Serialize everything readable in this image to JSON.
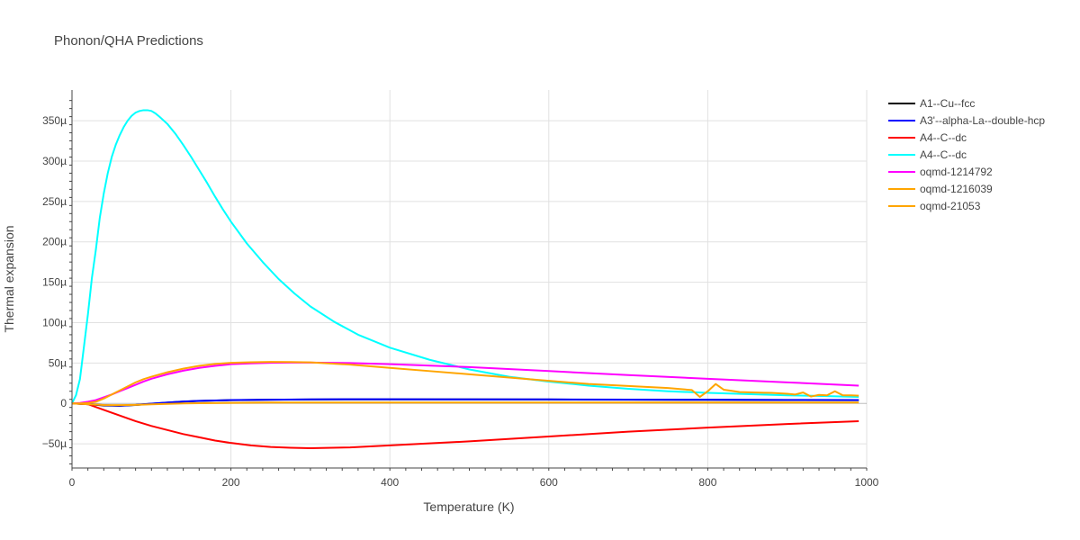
{
  "chart_data": {
    "type": "line",
    "title": "Phonon/QHA Predictions",
    "xlabel": "Temperature (K)",
    "ylabel": "Thermal expansion",
    "xlim": [
      0,
      1000
    ],
    "ylim": [
      -8e-05,
      0.000388
    ],
    "xticks": [
      0,
      200,
      400,
      600,
      800,
      1000
    ],
    "xtick_labels": [
      "0",
      "200",
      "400",
      "600",
      "800",
      "1000"
    ],
    "yticks": [
      -5e-05,
      0,
      5e-05,
      0.0001,
      0.00015,
      0.0002,
      0.00025,
      0.0003,
      0.00035
    ],
    "ytick_labels": [
      "−50µ",
      "0",
      "50µ",
      "100µ",
      "150µ",
      "200µ",
      "250µ",
      "300µ",
      "350µ"
    ],
    "grid": true,
    "legend_position": "right",
    "series": [
      {
        "name": "A1--Cu--fcc",
        "color": "#000000",
        "x": [
          0,
          20,
          40,
          60,
          80,
          100,
          120,
          140,
          160,
          200,
          250,
          300,
          350,
          400,
          500,
          600,
          700,
          800,
          900,
          990
        ],
        "y": [
          0,
          -1e-06,
          -2.5e-06,
          -3e-06,
          -2e-06,
          -5e-07,
          1e-06,
          2.2e-06,
          3e-06,
          4e-06,
          4.5e-06,
          4.8e-06,
          5e-06,
          5e-06,
          5e-06,
          4.8e-06,
          4.6e-06,
          4.4e-06,
          4.2e-06,
          4e-06
        ]
      },
      {
        "name": "A3'--alpha-La--double-hcp",
        "color": "#0000ff",
        "x": [
          0,
          20,
          40,
          60,
          80,
          100,
          120,
          140,
          160,
          200,
          250,
          300,
          350,
          400,
          500,
          600,
          700,
          800,
          900,
          990
        ],
        "y": [
          0,
          -8e-07,
          -2.2e-06,
          -2.8e-06,
          -1.8e-06,
          -3e-07,
          1.1e-06,
          2.3e-06,
          3.1e-06,
          4.1e-06,
          4.6e-06,
          4.9e-06,
          5.1e-06,
          5.1e-06,
          5e-06,
          4.9e-06,
          4.7e-06,
          4.5e-06,
          4.3e-06,
          4.1e-06
        ]
      },
      {
        "name": "A4--C--dc",
        "color": "#ff0000",
        "x": [
          0,
          20,
          40,
          60,
          80,
          100,
          120,
          140,
          160,
          180,
          200,
          225,
          250,
          275,
          300,
          350,
          400,
          500,
          600,
          700,
          800,
          900,
          990
        ],
        "y": [
          0,
          -1e-06,
          -8e-06,
          -1.5e-05,
          -2.2e-05,
          -2.8e-05,
          -3.3e-05,
          -3.8e-05,
          -4.2e-05,
          -4.6e-05,
          -4.9e-05,
          -5.2e-05,
          -5.4e-05,
          -5.5e-05,
          -5.55e-05,
          -5.45e-05,
          -5.2e-05,
          -4.7e-05,
          -4.1e-05,
          -3.5e-05,
          -3e-05,
          -2.55e-05,
          -2.2e-05
        ]
      },
      {
        "name": "A4--C--dc",
        "color": "#00ffff",
        "x": [
          0,
          5,
          10,
          15,
          20,
          25,
          30,
          35,
          40,
          45,
          50,
          55,
          60,
          65,
          70,
          75,
          80,
          85,
          90,
          95,
          100,
          105,
          110,
          120,
          130,
          140,
          150,
          160,
          170,
          180,
          190,
          200,
          220,
          240,
          260,
          280,
          300,
          330,
          360,
          400,
          450,
          500,
          550,
          600,
          650,
          700,
          750,
          800,
          850,
          900,
          950,
          990
        ],
        "y": [
          0,
          1e-05,
          3e-05,
          7e-05,
          0.00011,
          0.000155,
          0.00019,
          0.00023,
          0.00026,
          0.000285,
          0.000305,
          0.00032,
          0.000332,
          0.000342,
          0.00035,
          0.000356,
          0.00036,
          0.000362,
          0.000363,
          0.000363,
          0.000362,
          0.000359,
          0.000355,
          0.000346,
          0.000334,
          0.00032,
          0.000305,
          0.000289,
          0.000273,
          0.000256,
          0.00024,
          0.000225,
          0.000198,
          0.000175,
          0.000154,
          0.000136,
          0.00012,
          0.000101,
          8.5e-05,
          6.9e-05,
          5.4e-05,
          4.2e-05,
          3.3e-05,
          2.7e-05,
          2.2e-05,
          1.8e-05,
          1.5e-05,
          1.3e-05,
          1.15e-05,
          1e-05,
          9e-06,
          8e-06
        ]
      },
      {
        "name": "oqmd-1214792",
        "color": "#ff00ff",
        "x": [
          0,
          10,
          20,
          30,
          40,
          50,
          60,
          70,
          80,
          90,
          100,
          120,
          140,
          160,
          180,
          200,
          225,
          250,
          275,
          300,
          350,
          400,
          500,
          600,
          700,
          800,
          900,
          990
        ],
        "y": [
          0,
          5e-07,
          2e-06,
          4e-06,
          7.5e-06,
          1.1e-05,
          1.5e-05,
          1.9e-05,
          2.3e-05,
          2.7e-05,
          3.05e-05,
          3.6e-05,
          4.05e-05,
          4.4e-05,
          4.65e-05,
          4.85e-05,
          4.95e-05,
          5.02e-05,
          5.05e-05,
          5.05e-05,
          5e-05,
          4.85e-05,
          4.5e-05,
          4e-05,
          3.5e-05,
          3.05e-05,
          2.6e-05,
          2.2e-05
        ]
      },
      {
        "name": "oqmd-1216039",
        "color": "#ffa500",
        "x": [
          0,
          20,
          40,
          60,
          80,
          100,
          120,
          140,
          160,
          200,
          250,
          300,
          350,
          400,
          500,
          600,
          700,
          800,
          900,
          990
        ],
        "y": [
          0,
          -1e-06,
          -2e-06,
          -2.2e-06,
          -1.8e-06,
          -1.2e-06,
          -6e-07,
          0,
          3e-07,
          7e-07,
          1e-06,
          1.1e-06,
          1.1e-06,
          1.1e-06,
          1e-06,
          1e-06,
          1e-06,
          1e-06,
          1e-06,
          1e-06
        ]
      },
      {
        "name": "oqmd-21053",
        "color": "#ffa500",
        "x": [
          0,
          10,
          20,
          30,
          40,
          50,
          60,
          70,
          80,
          90,
          100,
          120,
          140,
          160,
          180,
          200,
          225,
          250,
          275,
          300,
          350,
          400,
          450,
          500,
          550,
          600,
          650,
          700,
          750,
          780,
          790,
          800,
          810,
          820,
          830,
          840,
          850,
          860,
          870,
          880,
          890,
          900,
          910,
          920,
          930,
          940,
          950,
          960,
          970,
          980,
          990
        ],
        "y": [
          0,
          0,
          5e-07,
          2e-06,
          6e-06,
          1.1e-05,
          1.6e-05,
          2.1e-05,
          2.6e-05,
          3e-05,
          3.3e-05,
          3.85e-05,
          4.3e-05,
          4.65e-05,
          4.88e-05,
          5.02e-05,
          5.1e-05,
          5.13e-05,
          5.12e-05,
          5.08e-05,
          4.8e-05,
          4.4e-05,
          4e-05,
          3.6e-05,
          3.2e-05,
          2.8e-05,
          2.4e-05,
          2.15e-05,
          1.9e-05,
          1.65e-05,
          8e-06,
          1.5e-05,
          2.4e-05,
          1.7e-05,
          1.55e-05,
          1.4e-05,
          1.38e-05,
          1.35e-05,
          1.32e-05,
          1.3e-05,
          1.25e-05,
          1.2e-05,
          1.1e-05,
          1.35e-05,
          8.5e-06,
          1.05e-05,
          1e-05,
          1.5e-05,
          1e-05,
          1e-05,
          9.5e-06
        ]
      }
    ]
  }
}
